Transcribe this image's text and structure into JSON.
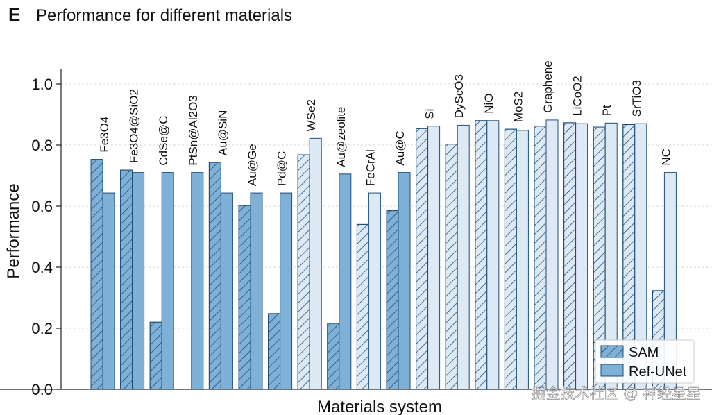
{
  "panel": {
    "letter": "E",
    "title": "Performance for different materials"
  },
  "watermark": "掘金技术社区 @ 神经星星",
  "colors": {
    "dark_fill": "#7fb0d6",
    "light_fill": "#ddeaf6",
    "outline": "#1f4e79",
    "hatch": "#1a4d7a",
    "grid": "#cfcfcf"
  },
  "chart_data": {
    "type": "bar",
    "title": "Performance for different materials",
    "xlabel": "Materials system",
    "ylabel": "Performance",
    "ylim": [
      0,
      1.05
    ],
    "yticks": [
      0.0,
      0.2,
      0.4,
      0.6,
      0.8,
      1.0
    ],
    "ytick_labels": [
      "0.0",
      "0.2",
      "0.4",
      "0.6",
      "0.8",
      "1.0"
    ],
    "grid": "horizontal dashed",
    "legend_position": "bottom-right",
    "categories": [
      "Fe3O4",
      "Fe3O4@SiO2",
      "CdSe@C",
      "PtSn@Al2O3",
      "Au@SiN",
      "Au@Ge",
      "Pd@C",
      "WSe2",
      "Au@zeolite",
      "FeCrAl",
      "Au@C",
      "Si",
      "DyScO3",
      "NiO",
      "MoS2",
      "Graphene",
      "LiCoO2",
      "Pt",
      "SrTiO3",
      "NC"
    ],
    "category_shade": [
      "dark",
      "dark",
      "dark",
      "dark",
      "dark",
      "dark",
      "dark",
      "light",
      "dark",
      "light",
      "dark",
      "light",
      "light",
      "light",
      "light",
      "light",
      "light",
      "light",
      "light",
      "light"
    ],
    "series": [
      {
        "name": "SAM",
        "pattern": "hatched",
        "values": [
          0.753,
          0.718,
          0.22,
          null,
          0.743,
          0.602,
          0.248,
          0.768,
          0.216,
          0.54,
          0.585,
          0.854,
          0.803,
          0.88,
          0.852,
          0.862,
          0.873,
          0.859,
          0.867,
          0.323
        ]
      },
      {
        "name": "Ref-UNet",
        "pattern": "solid",
        "values": [
          0.643,
          0.71,
          0.71,
          0.71,
          0.643,
          0.643,
          0.643,
          0.822,
          0.705,
          0.643,
          0.71,
          0.862,
          0.865,
          0.88,
          0.848,
          0.882,
          0.87,
          0.872,
          0.87,
          0.71
        ]
      }
    ]
  }
}
